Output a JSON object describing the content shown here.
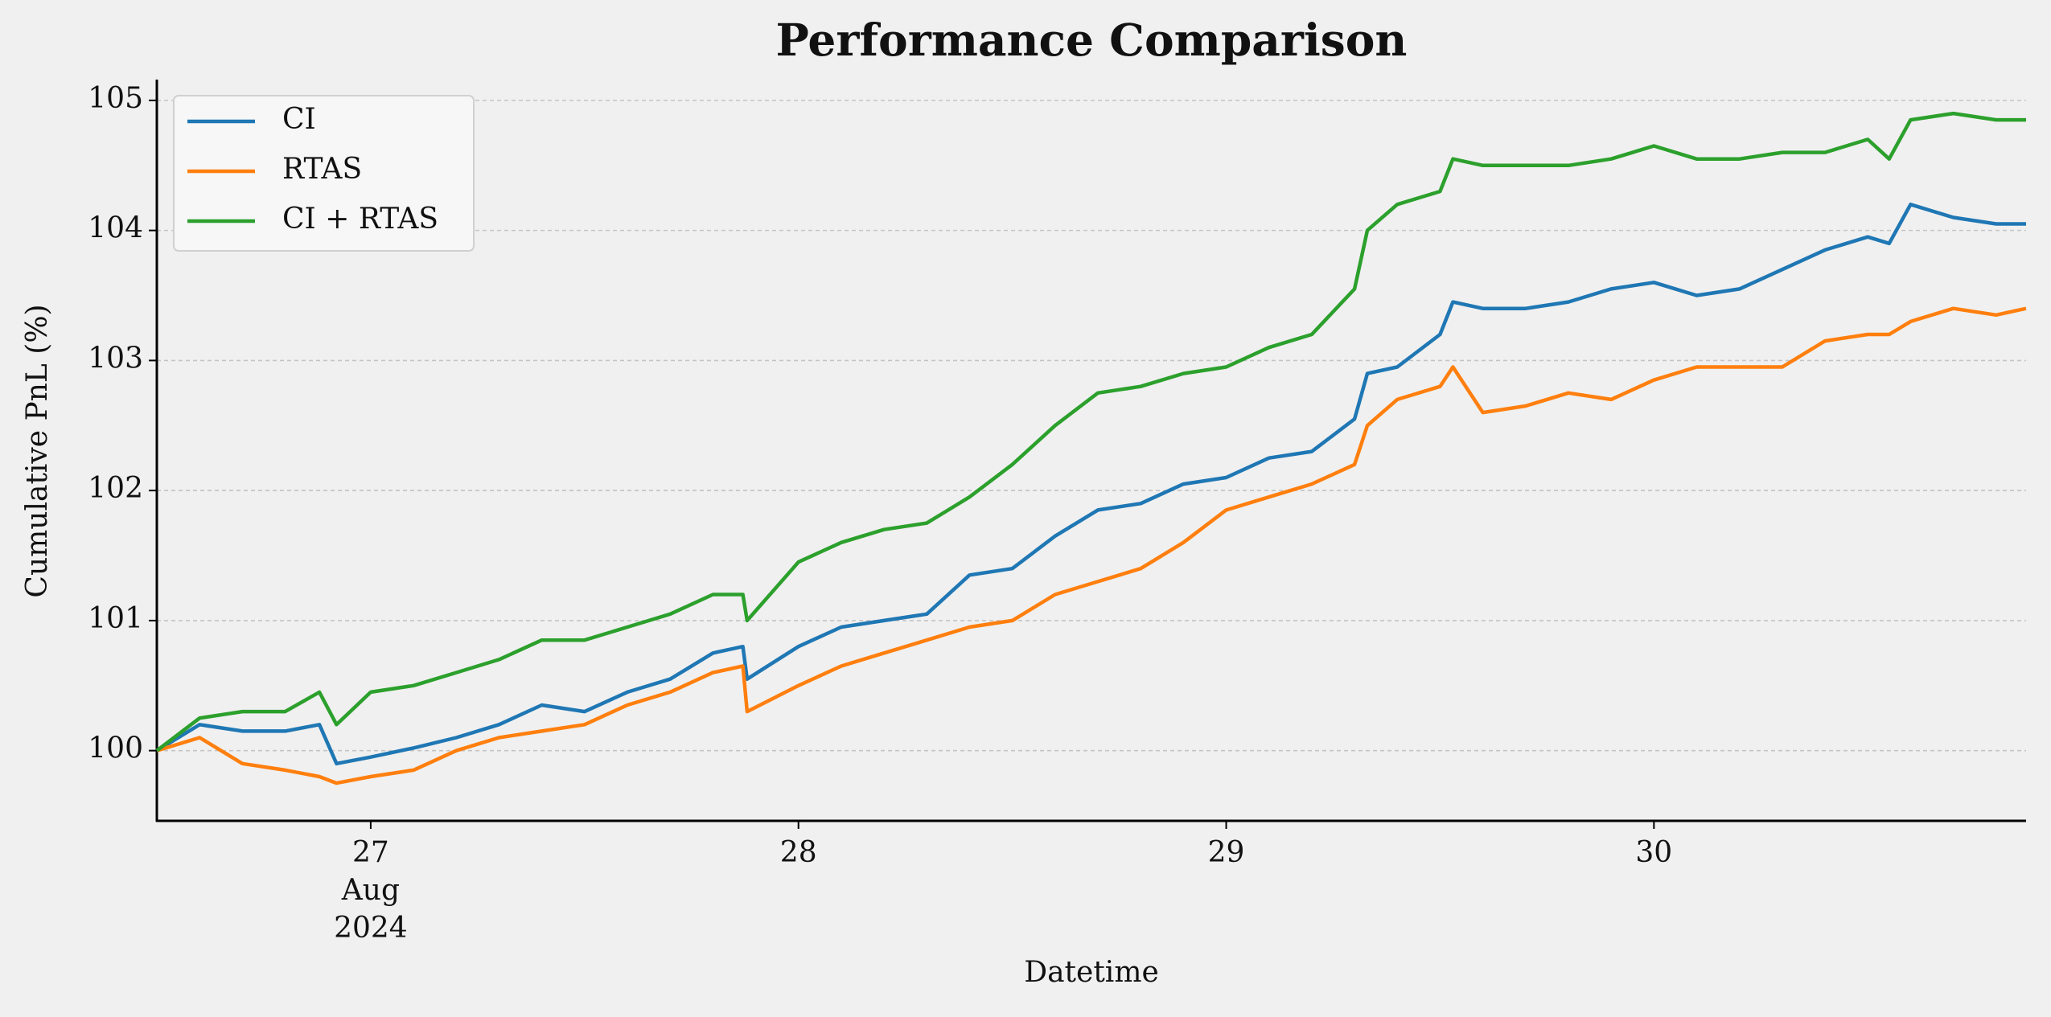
{
  "chart_data": {
    "type": "line",
    "title": "Performance Comparison",
    "xlabel": "Datetime",
    "ylabel": "Cumulative PnL (%)",
    "x": [
      26.5,
      26.6,
      26.7,
      26.8,
      26.88,
      26.92,
      27.0,
      27.1,
      27.2,
      27.3,
      27.4,
      27.5,
      27.6,
      27.7,
      27.8,
      27.87,
      27.88,
      28.0,
      28.1,
      28.2,
      28.3,
      28.4,
      28.5,
      28.6,
      28.7,
      28.8,
      28.9,
      29.0,
      29.1,
      29.2,
      29.3,
      29.33,
      29.4,
      29.5,
      29.53,
      29.6,
      29.7,
      29.8,
      29.9,
      30.0,
      30.1,
      30.2,
      30.3,
      30.4,
      30.5,
      30.55,
      30.6,
      30.7,
      30.8,
      30.87
    ],
    "series": [
      {
        "name": "CI",
        "color": "#1f77b4",
        "values": [
          100.0,
          100.2,
          100.15,
          100.15,
          100.2,
          99.9,
          99.95,
          100.02,
          100.1,
          100.2,
          100.35,
          100.3,
          100.45,
          100.55,
          100.75,
          100.8,
          100.55,
          100.8,
          100.95,
          101.0,
          101.05,
          101.35,
          101.4,
          101.65,
          101.85,
          101.9,
          102.05,
          102.1,
          102.25,
          102.3,
          102.55,
          102.9,
          102.95,
          103.2,
          103.45,
          103.4,
          103.4,
          103.45,
          103.55,
          103.6,
          103.5,
          103.55,
          103.7,
          103.85,
          103.95,
          103.9,
          104.2,
          104.1,
          104.05,
          104.05
        ]
      },
      {
        "name": "RTAS",
        "color": "#ff7f0e",
        "values": [
          100.0,
          100.1,
          99.9,
          99.85,
          99.8,
          99.75,
          99.8,
          99.85,
          100.0,
          100.1,
          100.15,
          100.2,
          100.35,
          100.45,
          100.6,
          100.65,
          100.3,
          100.5,
          100.65,
          100.75,
          100.85,
          100.95,
          101.0,
          101.2,
          101.3,
          101.4,
          101.6,
          101.85,
          101.95,
          102.05,
          102.2,
          102.5,
          102.7,
          102.8,
          102.95,
          102.6,
          102.65,
          102.75,
          102.7,
          102.85,
          102.95,
          102.95,
          102.95,
          103.15,
          103.2,
          103.2,
          103.3,
          103.4,
          103.35,
          103.4
        ]
      },
      {
        "name": "CI + RTAS",
        "color": "#2ca02c",
        "values": [
          100.0,
          100.25,
          100.3,
          100.3,
          100.45,
          100.2,
          100.45,
          100.5,
          100.6,
          100.7,
          100.85,
          100.85,
          100.95,
          101.05,
          101.2,
          101.2,
          101.0,
          101.45,
          101.6,
          101.7,
          101.75,
          101.95,
          102.2,
          102.5,
          102.75,
          102.8,
          102.9,
          102.95,
          103.1,
          103.2,
          103.55,
          104.0,
          104.2,
          104.3,
          104.55,
          104.5,
          104.5,
          104.5,
          104.55,
          104.65,
          104.55,
          104.55,
          104.6,
          104.6,
          104.7,
          104.55,
          104.85,
          104.9,
          104.85,
          104.85
        ]
      }
    ],
    "xlim": [
      26.5,
      30.87
    ],
    "xticks": [
      {
        "value": 27,
        "label": [
          "27",
          "Aug",
          "2024"
        ]
      },
      28,
      29,
      30
    ],
    "ylim": [
      99.46,
      105.16
    ],
    "yticks": [
      100,
      101,
      102,
      103,
      104,
      105
    ],
    "grid": true,
    "legend": "upper left"
  }
}
